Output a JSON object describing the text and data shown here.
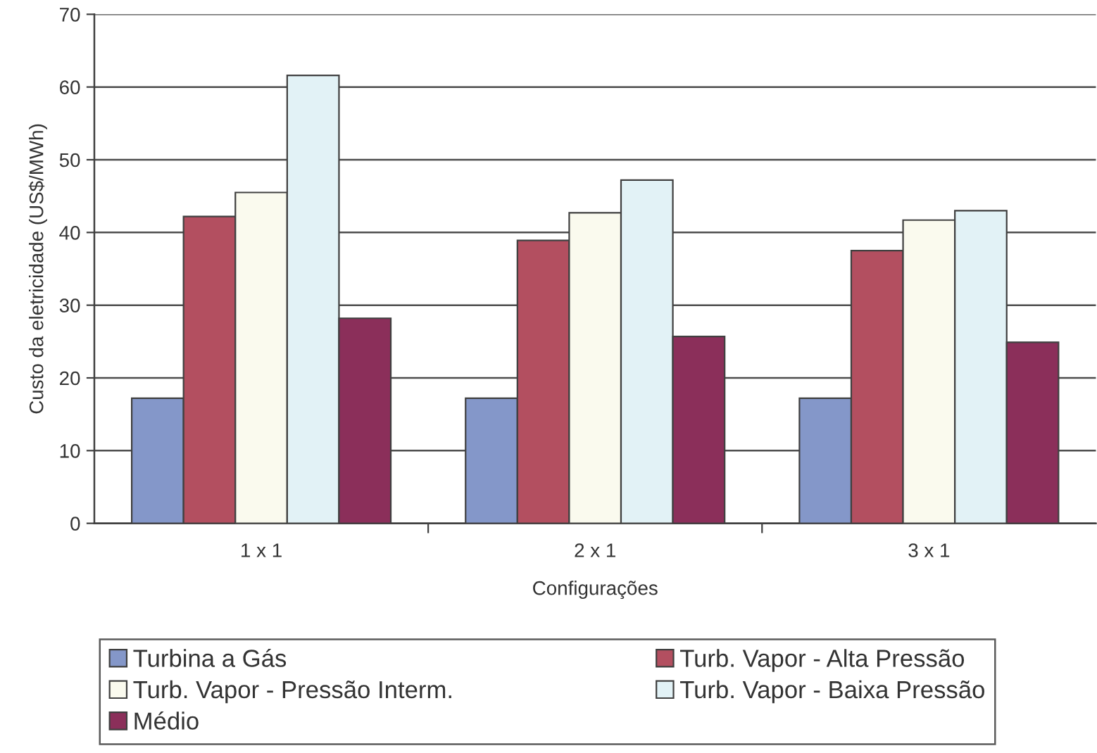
{
  "chart_data": {
    "type": "bar",
    "xlabel": "Configurações",
    "ylabel": "Custo da eletricidade (US$/MWh)",
    "categories": [
      "1 x 1",
      "2 x 1",
      "3 x 1"
    ],
    "series": [
      {
        "name": "Turbina a Gás",
        "color": "#8497c9",
        "values": [
          17.2,
          17.2,
          17.2
        ]
      },
      {
        "name": "Turb. Vapor - Alta Pressão",
        "color": "#b34f60",
        "values": [
          42.2,
          38.9,
          37.5
        ]
      },
      {
        "name": "Turb. Vapor - Pressão Interm.",
        "color": "#fafaee",
        "values": [
          45.5,
          42.7,
          41.7
        ]
      },
      {
        "name": "Turb. Vapor - Baixa Pressão",
        "color": "#e2f2f6",
        "values": [
          61.6,
          47.2,
          43.0
        ]
      },
      {
        "name": "Médio",
        "color": "#8b2f5a",
        "values": [
          28.2,
          25.7,
          24.9
        ]
      }
    ],
    "ylim": [
      0,
      70
    ],
    "yticks": [
      0,
      10,
      20,
      30,
      40,
      50,
      60,
      70
    ],
    "grid": "y",
    "legend": "bottom"
  }
}
